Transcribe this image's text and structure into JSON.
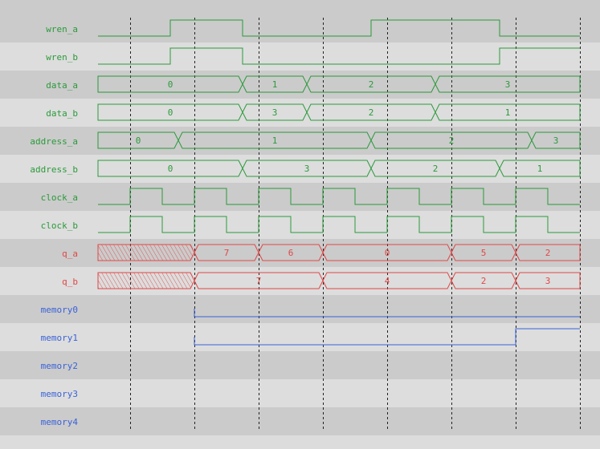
{
  "time_end": 15,
  "grid_times": [
    1,
    3,
    5,
    7,
    9,
    11,
    13,
    15
  ],
  "colors": {
    "logic": "#2a9a3a",
    "output": "#e04848",
    "memory": "#3a62d8",
    "row_dark": "#cbcbcb",
    "row_light": "#dddddd",
    "grid": "#222222"
  },
  "signals": [
    {
      "name": "wren_a",
      "kind": "bit",
      "color": "logic",
      "initial": 0,
      "edges": [
        2.25,
        4.5,
        8.5,
        12.5
      ]
    },
    {
      "name": "wren_b",
      "kind": "bit",
      "color": "logic",
      "initial": 0,
      "edges": [
        2.25,
        4.5,
        12.5
      ]
    },
    {
      "name": "data_a",
      "kind": "bus",
      "color": "logic",
      "segments": [
        {
          "from": 0,
          "to": 4.5,
          "value": "0"
        },
        {
          "from": 4.5,
          "to": 6.5,
          "value": "1"
        },
        {
          "from": 6.5,
          "to": 10.5,
          "value": "2"
        },
        {
          "from": 10.5,
          "to": 15,
          "value": "3"
        }
      ]
    },
    {
      "name": "data_b",
      "kind": "bus",
      "color": "logic",
      "segments": [
        {
          "from": 0,
          "to": 4.5,
          "value": "0"
        },
        {
          "from": 4.5,
          "to": 6.5,
          "value": "3"
        },
        {
          "from": 6.5,
          "to": 10.5,
          "value": "2"
        },
        {
          "from": 10.5,
          "to": 15,
          "value": "1"
        }
      ]
    },
    {
      "name": "address_a",
      "kind": "bus",
      "color": "logic",
      "segments": [
        {
          "from": 0,
          "to": 2.5,
          "value": "0"
        },
        {
          "from": 2.5,
          "to": 8.5,
          "value": "1"
        },
        {
          "from": 8.5,
          "to": 13.5,
          "value": "2"
        },
        {
          "from": 13.5,
          "to": 15,
          "value": "3"
        }
      ]
    },
    {
      "name": "address_b",
      "kind": "bus",
      "color": "logic",
      "segments": [
        {
          "from": 0,
          "to": 4.5,
          "value": "0"
        },
        {
          "from": 4.5,
          "to": 8.5,
          "value": "3"
        },
        {
          "from": 8.5,
          "to": 12.5,
          "value": "2"
        },
        {
          "from": 12.5,
          "to": 15,
          "value": "1"
        }
      ]
    },
    {
      "name": "clock_a",
      "kind": "bit",
      "color": "logic",
      "initial": 0,
      "edges": [
        1,
        2,
        3,
        4,
        5,
        6,
        7,
        8,
        9,
        10,
        11,
        12,
        13,
        14
      ]
    },
    {
      "name": "clock_b",
      "kind": "bit",
      "color": "logic",
      "initial": 0,
      "edges": [
        1,
        2,
        3,
        4,
        5,
        6,
        7,
        8,
        9,
        10,
        11,
        12,
        13,
        14
      ]
    },
    {
      "name": "q_a",
      "kind": "bus",
      "color": "output",
      "segments": [
        {
          "from": 0,
          "to": 3,
          "value": "",
          "unknown": true
        },
        {
          "from": 3,
          "to": 5,
          "value": "7"
        },
        {
          "from": 5,
          "to": 7,
          "value": "6"
        },
        {
          "from": 7,
          "to": 11,
          "value": "0"
        },
        {
          "from": 11,
          "to": 13,
          "value": "5"
        },
        {
          "from": 13,
          "to": 15,
          "value": "2"
        }
      ]
    },
    {
      "name": "q_b",
      "kind": "bus",
      "color": "output",
      "segments": [
        {
          "from": 0,
          "to": 3,
          "value": "",
          "unknown": true
        },
        {
          "from": 3,
          "to": 7,
          "value": "7"
        },
        {
          "from": 7,
          "to": 11,
          "value": "4"
        },
        {
          "from": 11,
          "to": 13,
          "value": "2"
        },
        {
          "from": 13,
          "to": 15,
          "value": "3"
        }
      ]
    },
    {
      "name": "memory0",
      "kind": "mem",
      "color": "memory",
      "start": 3,
      "initial": 0,
      "edges": []
    },
    {
      "name": "memory1",
      "kind": "mem",
      "color": "memory",
      "start": 3,
      "initial": 0,
      "edges": [
        13
      ]
    },
    {
      "name": "memory2",
      "kind": "mem",
      "color": "memory",
      "edges": []
    },
    {
      "name": "memory3",
      "kind": "mem",
      "color": "memory",
      "edges": []
    },
    {
      "name": "memory4",
      "kind": "mem",
      "color": "memory",
      "edges": []
    }
  ]
}
